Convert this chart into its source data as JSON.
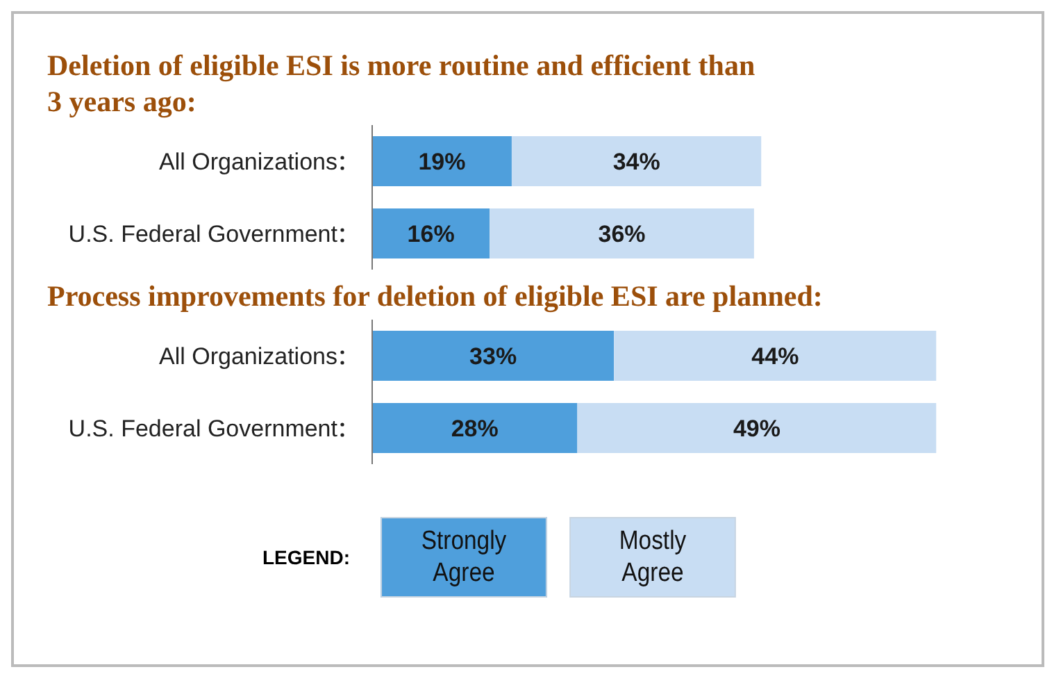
{
  "chart_data": [
    {
      "type": "bar",
      "orientation": "horizontal",
      "stacked": true,
      "legend": false,
      "title": "Deletion of eligible ESI is more routine and efficient than 3 years ago:",
      "categories": [
        "All Organizations",
        "U.S. Federal Government"
      ],
      "series": [
        {
          "color": "#4f9fdc",
          "values": [
            19,
            16
          ],
          "value_labels": [
            "19%",
            "16%"
          ]
        },
        {
          "color": "#c8ddf3",
          "values": [
            34,
            36
          ],
          "value_labels": [
            "34%",
            "36%"
          ]
        }
      ]
    },
    {
      "type": "bar",
      "orientation": "horizontal",
      "stacked": true,
      "legend": "bottom",
      "legend_title": "LEGEND:",
      "title": "Process improvements for deletion of eligible ESI are planned:",
      "categories": [
        "All Organizations",
        "U.S. Federal Government"
      ],
      "series": [
        {
          "name": "Strongly Agree",
          "color": "#4f9fdc",
          "values": [
            33,
            28
          ],
          "value_labels": [
            "33%",
            "28%"
          ]
        },
        {
          "name": "Mostly Agree",
          "color": "#c8ddf3",
          "values": [
            44,
            49
          ],
          "value_labels": [
            "44%",
            "49%"
          ]
        }
      ]
    }
  ]
}
